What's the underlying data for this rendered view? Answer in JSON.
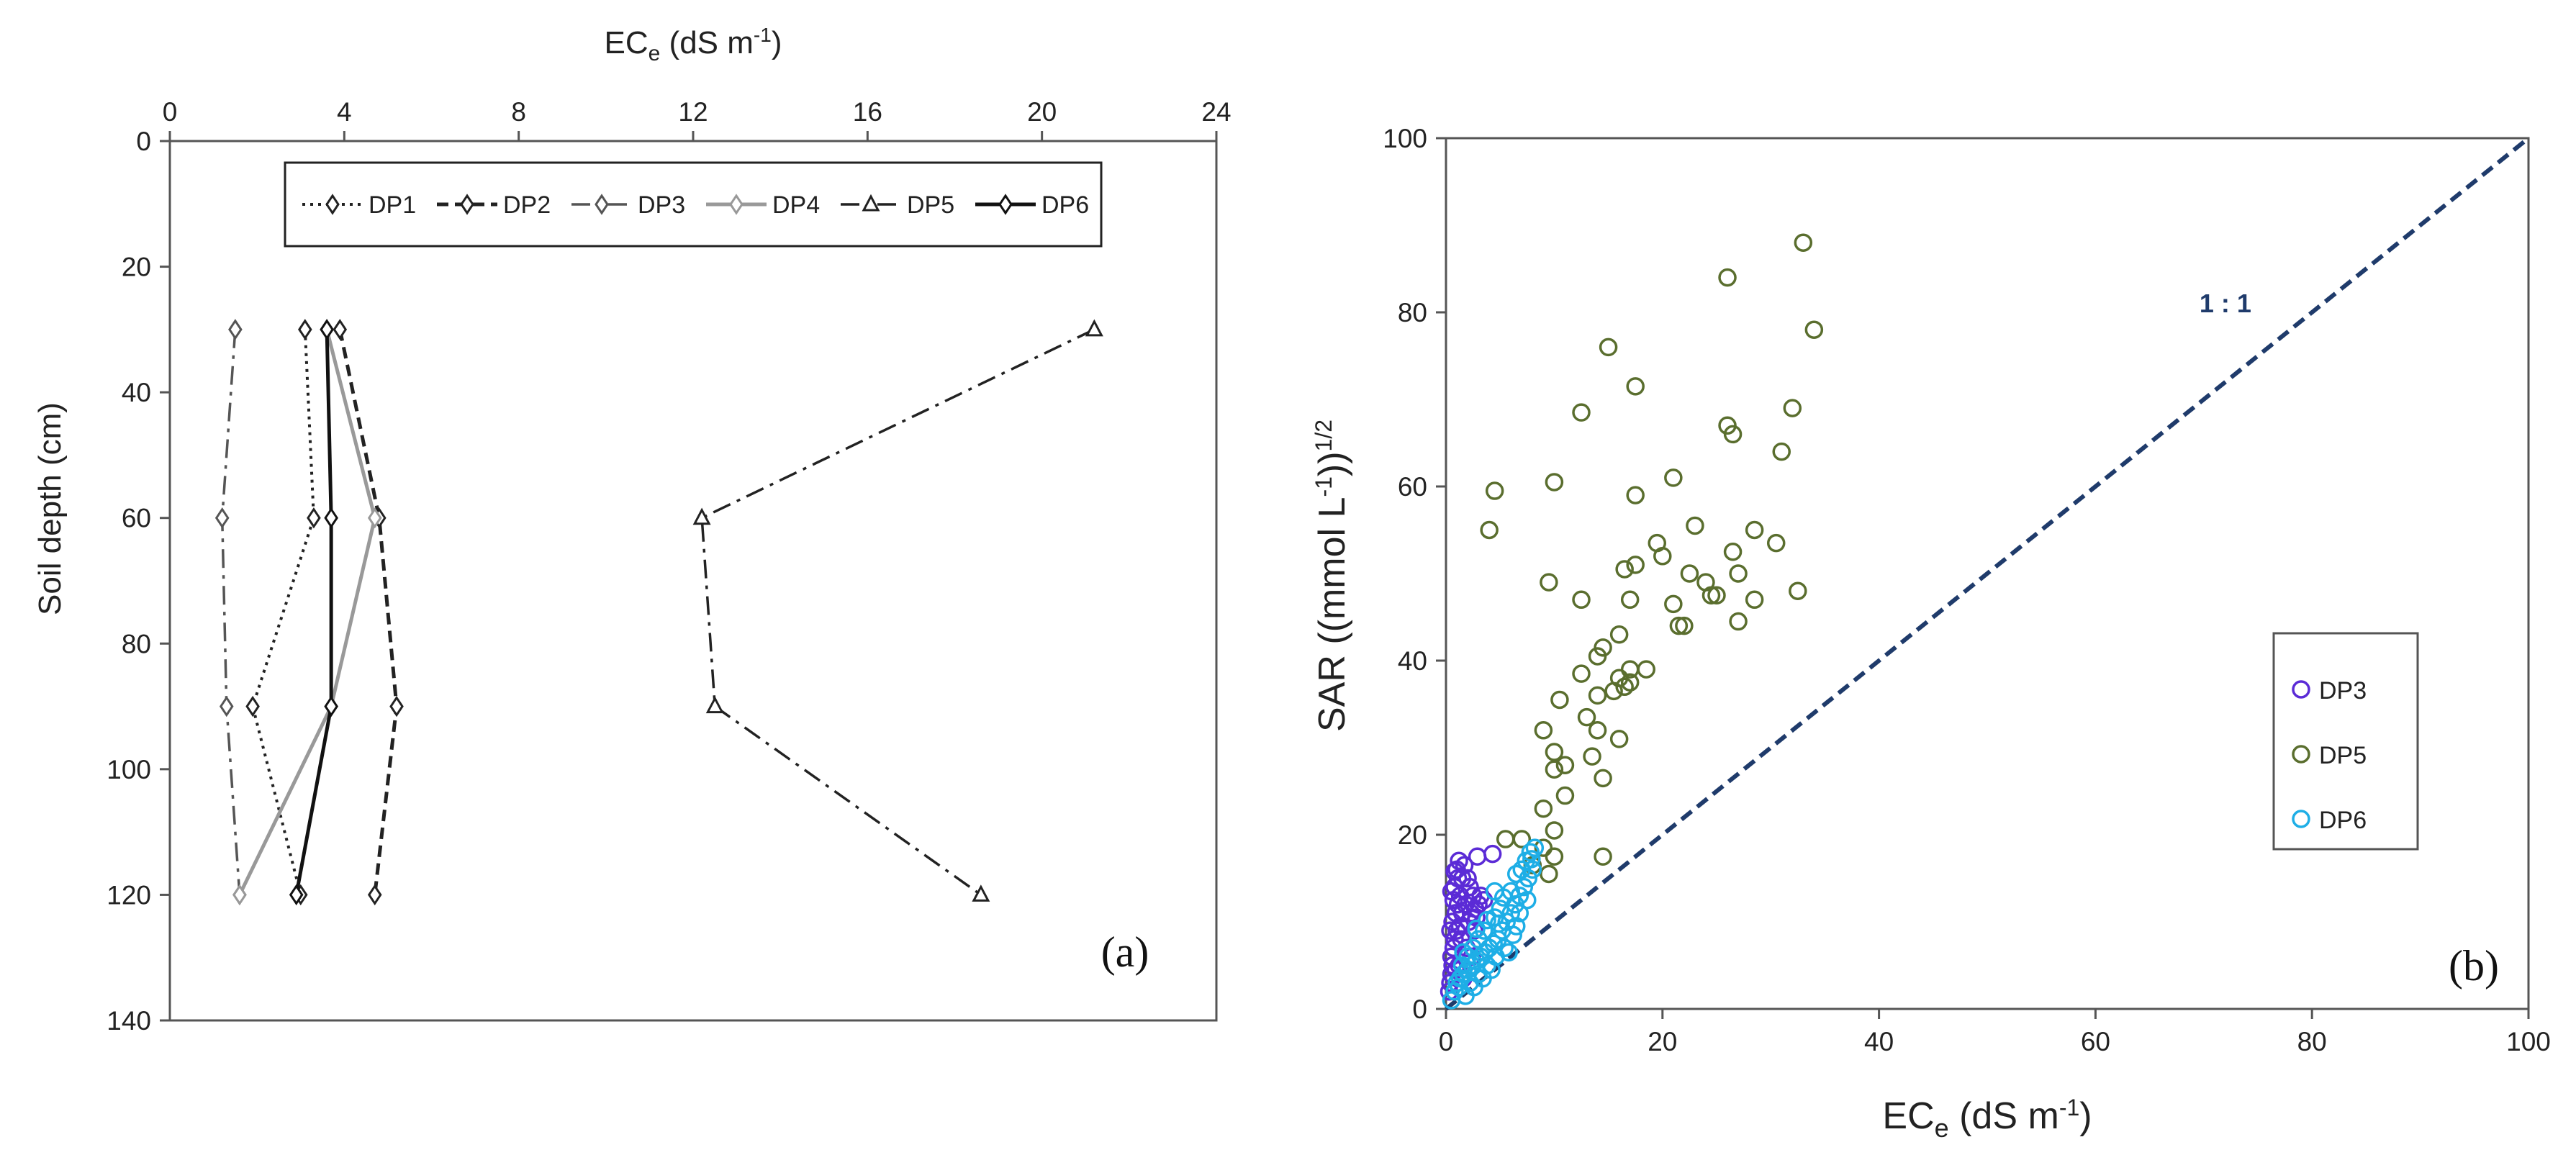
{
  "chart_data": [
    {
      "type": "line",
      "panel_label": "(a)",
      "xlabel": {
        "main": "EC",
        "sub": "e",
        "rest": " (dS m",
        "sup": "-1",
        "end": ")"
      },
      "ylabel": "Soil depth (cm)",
      "xlim": [
        0,
        24
      ],
      "ylim": [
        0,
        140
      ],
      "y_inverted": true,
      "x_axis_position": "top",
      "xticks": [
        "0",
        "4",
        "8",
        "12",
        "16",
        "20",
        "24"
      ],
      "xtick_values": [
        0,
        4,
        8,
        12,
        16,
        20,
        24
      ],
      "yticks": [
        "0",
        "20",
        "40",
        "60",
        "80",
        "100",
        "120",
        "140"
      ],
      "ytick_values": [
        0,
        20,
        40,
        60,
        80,
        100,
        120,
        140
      ],
      "legend_position": "top-center",
      "series": [
        {
          "name": "DP1",
          "style": "dotted",
          "color": "#222222",
          "marker": "diamond",
          "depth": [
            30,
            60,
            90,
            120
          ],
          "ece": [
            3.1,
            3.3,
            1.9,
            3.0
          ]
        },
        {
          "name": "DP2",
          "style": "dashed",
          "color": "#222222",
          "marker": "diamond",
          "depth": [
            30,
            60,
            90,
            120
          ],
          "ece": [
            3.9,
            4.8,
            5.2,
            4.7
          ]
        },
        {
          "name": "DP3",
          "style": "dashdot",
          "color": "#555555",
          "marker": "diamond",
          "depth": [
            30,
            60,
            90,
            120
          ],
          "ece": [
            1.5,
            1.2,
            1.3,
            1.6
          ]
        },
        {
          "name": "DP4",
          "style": "solid-gray",
          "color": "#999999",
          "marker": "diamond",
          "depth": [
            30,
            60,
            90,
            120
          ],
          "ece": [
            3.6,
            4.7,
            3.7,
            1.6
          ]
        },
        {
          "name": "DP5",
          "style": "dashdot",
          "color": "#222222",
          "marker": "triangle",
          "depth": [
            30,
            60,
            90,
            120
          ],
          "ece": [
            21.2,
            12.2,
            12.5,
            18.6
          ]
        },
        {
          "name": "DP6",
          "style": "solid",
          "color": "#111111",
          "marker": "diamond",
          "depth": [
            30,
            60,
            90,
            120
          ],
          "ece": [
            3.6,
            3.7,
            3.7,
            2.9
          ]
        }
      ]
    },
    {
      "type": "scatter",
      "panel_label": "(b)",
      "xlabel": {
        "main": "EC",
        "sub": "e",
        "rest": " (dS m",
        "sup": "-1",
        "end": ")"
      },
      "ylabel": {
        "main": "SAR ((mmol L",
        "sup1": "-1",
        "mid": "))",
        "sup2": "1/2",
        "end": ""
      },
      "xlim": [
        0,
        100
      ],
      "ylim": [
        0,
        100
      ],
      "xticks": [
        "0",
        "20",
        "40",
        "60",
        "80",
        "100"
      ],
      "xtick_values": [
        0,
        20,
        40,
        60,
        80,
        100
      ],
      "yticks": [
        "0",
        "20",
        "40",
        "60",
        "80",
        "100"
      ],
      "ytick_values": [
        0,
        20,
        40,
        60,
        80,
        100
      ],
      "reference_line": {
        "label": "1 : 1",
        "from": [
          0,
          0
        ],
        "to": [
          100,
          100
        ],
        "color": "#1f3b6b",
        "label_at": [
          72,
          80
        ]
      },
      "legend_position": "right-middle",
      "series": [
        {
          "name": "DP3",
          "color": "#5b2bd6",
          "points": [
            [
              0.3,
              2
            ],
            [
              0.4,
              3
            ],
            [
              0.5,
              4
            ],
            [
              0.6,
              5
            ],
            [
              0.5,
              6
            ],
            [
              0.7,
              7
            ],
            [
              0.8,
              8
            ],
            [
              1.0,
              9
            ],
            [
              0.6,
              10
            ],
            [
              0.9,
              11
            ],
            [
              1.1,
              12
            ],
            [
              1.3,
              13
            ],
            [
              0.8,
              14
            ],
            [
              1.5,
              15
            ],
            [
              1.0,
              16
            ],
            [
              1.7,
              16.5
            ],
            [
              2.0,
              15
            ],
            [
              2.2,
              14
            ],
            [
              2.5,
              13
            ],
            [
              1.8,
              12
            ],
            [
              2.3,
              11
            ],
            [
              2.8,
              10.5
            ],
            [
              3.0,
              12
            ],
            [
              2.6,
              9
            ],
            [
              1.4,
              8
            ],
            [
              1.9,
              7
            ],
            [
              2.4,
              6
            ],
            [
              1.2,
              5
            ],
            [
              0.9,
              4.5
            ],
            [
              1.6,
              3.5
            ],
            [
              2.1,
              10
            ],
            [
              2.7,
              11.5
            ],
            [
              3.2,
              13
            ],
            [
              1.5,
              11
            ],
            [
              1.3,
              9.5
            ],
            [
              0.7,
              12.5
            ],
            [
              1.1,
              15
            ],
            [
              0.5,
              13.5
            ],
            [
              0.4,
              9
            ],
            [
              3.5,
              12.5
            ],
            [
              2.9,
              17.5
            ],
            [
              4.3,
              17.8
            ],
            [
              1.2,
              17
            ],
            [
              0.8,
              15.8
            ]
          ]
        },
        {
          "name": "DP5",
          "color": "#5a6e2e",
          "points": [
            [
              33,
              88
            ],
            [
              26,
              84
            ],
            [
              34,
              78
            ],
            [
              15,
              76
            ],
            [
              17.5,
              71.5
            ],
            [
              12.5,
              68.5
            ],
            [
              32,
              69
            ],
            [
              26,
              67
            ],
            [
              26.5,
              66
            ],
            [
              31,
              64
            ],
            [
              21,
              61
            ],
            [
              4.5,
              59.5
            ],
            [
              10,
              60.5
            ],
            [
              17.5,
              59
            ],
            [
              4,
              55
            ],
            [
              23,
              55.5
            ],
            [
              28.5,
              55
            ],
            [
              30.5,
              53.5
            ],
            [
              19.5,
              53.5
            ],
            [
              20,
              52
            ],
            [
              26.5,
              52.5
            ],
            [
              27,
              50
            ],
            [
              22.5,
              50
            ],
            [
              24,
              49
            ],
            [
              17.5,
              51
            ],
            [
              9.5,
              49
            ],
            [
              16.5,
              50.5
            ],
            [
              25,
              47.5
            ],
            [
              28.5,
              47
            ],
            [
              32.5,
              48
            ],
            [
              21,
              46.5
            ],
            [
              12.5,
              47
            ],
            [
              17,
              47
            ],
            [
              24.5,
              47.5
            ],
            [
              27,
              44.5
            ],
            [
              16,
              43
            ],
            [
              21.5,
              44
            ],
            [
              22,
              44
            ],
            [
              14.5,
              41.5
            ],
            [
              14,
              40.5
            ],
            [
              17,
              39
            ],
            [
              18.5,
              39
            ],
            [
              12.5,
              38.5
            ],
            [
              16,
              38
            ],
            [
              17,
              37.5
            ],
            [
              16.5,
              37
            ],
            [
              15.5,
              36.5
            ],
            [
              14,
              36
            ],
            [
              10.5,
              35.5
            ],
            [
              13,
              33.5
            ],
            [
              9,
              32
            ],
            [
              14,
              32
            ],
            [
              16,
              31
            ],
            [
              10,
              29.5
            ],
            [
              13.5,
              29
            ],
            [
              11,
              28
            ],
            [
              10,
              27.5
            ],
            [
              14.5,
              26.5
            ],
            [
              9,
              23
            ],
            [
              11,
              24.5
            ],
            [
              10,
              20.5
            ],
            [
              5.5,
              19.5
            ],
            [
              7,
              19.5
            ],
            [
              9,
              18.5
            ],
            [
              10,
              17.5
            ],
            [
              14.5,
              17.5
            ],
            [
              8,
              16.5
            ],
            [
              9.5,
              15.5
            ]
          ]
        },
        {
          "name": "DP6",
          "color": "#1eaee6",
          "points": [
            [
              0.5,
              1
            ],
            [
              0.8,
              2
            ],
            [
              1.0,
              3
            ],
            [
              1.3,
              3.5
            ],
            [
              1.6,
              4
            ],
            [
              2.0,
              4.5
            ],
            [
              2.4,
              5
            ],
            [
              2.8,
              5.5
            ],
            [
              3.2,
              6
            ],
            [
              3.6,
              6.5
            ],
            [
              4.0,
              7
            ],
            [
              4.4,
              7.5
            ],
            [
              4.8,
              8
            ],
            [
              5.2,
              9
            ],
            [
              5.6,
              10
            ],
            [
              6.0,
              11
            ],
            [
              6.4,
              12
            ],
            [
              6.8,
              13
            ],
            [
              7.2,
              14
            ],
            [
              7.6,
              15
            ],
            [
              7.0,
              16
            ],
            [
              7.4,
              17
            ],
            [
              7.8,
              18
            ],
            [
              8.2,
              18.5
            ],
            [
              6.5,
              15.5
            ],
            [
              6.0,
              13.5
            ],
            [
              5.0,
              11.5
            ],
            [
              4.5,
              10.5
            ],
            [
              3.5,
              9
            ],
            [
              3.0,
              8
            ],
            [
              2.5,
              7
            ],
            [
              2.0,
              6
            ],
            [
              1.5,
              5
            ],
            [
              1.2,
              2.5
            ],
            [
              2.2,
              3
            ],
            [
              3.0,
              4
            ],
            [
              3.8,
              5
            ],
            [
              4.6,
              6
            ],
            [
              5.4,
              7
            ],
            [
              6.2,
              8.5
            ],
            [
              5.8,
              6.5
            ],
            [
              4.2,
              4.5
            ],
            [
              3.4,
              3.5
            ],
            [
              2.6,
              2.5
            ],
            [
              1.8,
              1.5
            ],
            [
              4.5,
              13.5
            ],
            [
              6.8,
              11
            ],
            [
              7.5,
              12.5
            ],
            [
              8.0,
              16
            ],
            [
              5.3,
              12.8
            ],
            [
              3.8,
              10.2
            ],
            [
              2.8,
              9.2
            ],
            [
              1.6,
              6.5
            ],
            [
              4.9,
              9.8
            ],
            [
              6.5,
              9.5
            ],
            [
              7.9,
              17.2
            ]
          ]
        }
      ]
    }
  ]
}
